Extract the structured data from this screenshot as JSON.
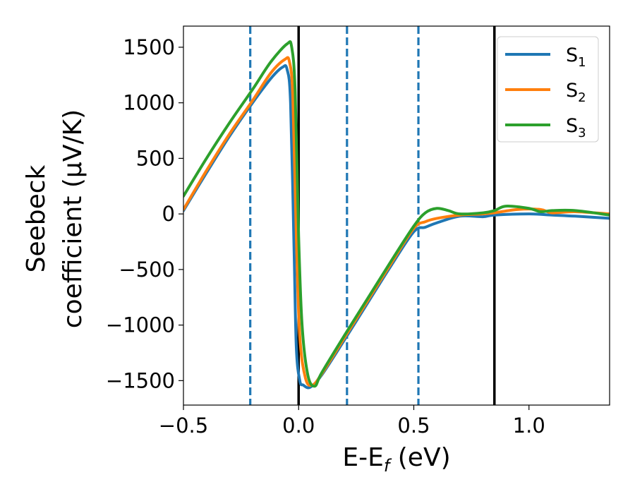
{
  "chart_data": {
    "type": "line",
    "xlabel": "E-E",
    "xlabel_sub": "f",
    "xlabel_unit": " (eV)",
    "ylabel_line1": "Seebeck",
    "ylabel_line2": "coefficient  (μV/K)",
    "xlim": [
      -0.5,
      1.35
    ],
    "ylim": [
      -1720,
      1690
    ],
    "x_ticks": [
      -0.5,
      0.0,
      0.5,
      1.0
    ],
    "x_tick_labels": [
      "−0.5",
      "0.0",
      "0.5",
      "1.0"
    ],
    "y_ticks": [
      1500,
      1000,
      500,
      0,
      -500,
      -1000,
      -1500
    ],
    "y_tick_labels": [
      "1500",
      "1000",
      "500",
      "0",
      "−500",
      "−1000",
      "−1500"
    ],
    "grid": false,
    "legend_position": "top-right",
    "vertical_lines": [
      {
        "x": -0.21,
        "style": "dashed",
        "color": "#1f77b4"
      },
      {
        "x": 0.0,
        "style": "solid",
        "color": "#000000"
      },
      {
        "x": 0.21,
        "style": "dashed",
        "color": "#1f77b4"
      },
      {
        "x": 0.52,
        "style": "dashed",
        "color": "#1f77b4"
      },
      {
        "x": 0.85,
        "style": "solid",
        "color": "#000000"
      }
    ],
    "series": [
      {
        "name": "S",
        "sub": "1",
        "color": "#1f77b4",
        "points": [
          [
            -0.5,
            30
          ],
          [
            -0.4,
            370
          ],
          [
            -0.3,
            700
          ],
          [
            -0.2,
            1000
          ],
          [
            -0.12,
            1220
          ],
          [
            -0.07,
            1320
          ],
          [
            -0.05,
            1300
          ],
          [
            -0.035,
            1000
          ],
          [
            -0.02,
            -300
          ],
          [
            -0.01,
            -1200
          ],
          [
            0.005,
            -1500
          ],
          [
            0.02,
            -1540
          ],
          [
            0.05,
            -1560
          ],
          [
            0.1,
            -1450
          ],
          [
            0.2,
            -1130
          ],
          [
            0.3,
            -800
          ],
          [
            0.4,
            -470
          ],
          [
            0.5,
            -160
          ],
          [
            0.55,
            -120
          ],
          [
            0.6,
            -80
          ],
          [
            0.7,
            -20
          ],
          [
            0.8,
            -25
          ],
          [
            0.85,
            -10
          ],
          [
            1.0,
            0
          ],
          [
            1.1,
            -10
          ],
          [
            1.2,
            -20
          ],
          [
            1.35,
            -40
          ]
        ]
      },
      {
        "name": "S",
        "sub": "2",
        "color": "#ff7f0e",
        "points": [
          [
            -0.5,
            40
          ],
          [
            -0.4,
            390
          ],
          [
            -0.3,
            720
          ],
          [
            -0.2,
            1020
          ],
          [
            -0.12,
            1270
          ],
          [
            -0.06,
            1390
          ],
          [
            -0.04,
            1370
          ],
          [
            -0.025,
            1050
          ],
          [
            -0.01,
            -200
          ],
          [
            0.005,
            -1100
          ],
          [
            0.03,
            -1480
          ],
          [
            0.06,
            -1540
          ],
          [
            0.1,
            -1440
          ],
          [
            0.2,
            -1110
          ],
          [
            0.3,
            -780
          ],
          [
            0.4,
            -450
          ],
          [
            0.5,
            -130
          ],
          [
            0.55,
            -70
          ],
          [
            0.6,
            -40
          ],
          [
            0.7,
            -10
          ],
          [
            0.8,
            0
          ],
          [
            0.85,
            10
          ],
          [
            0.95,
            40
          ],
          [
            1.05,
            40
          ],
          [
            1.1,
            10
          ],
          [
            1.2,
            20
          ],
          [
            1.35,
            0
          ]
        ]
      },
      {
        "name": "S",
        "sub": "3",
        "color": "#2ca02c",
        "points": [
          [
            -0.5,
            160
          ],
          [
            -0.4,
            500
          ],
          [
            -0.3,
            820
          ],
          [
            -0.2,
            1120
          ],
          [
            -0.12,
            1370
          ],
          [
            -0.05,
            1530
          ],
          [
            -0.03,
            1500
          ],
          [
            -0.015,
            1100
          ],
          [
            0.0,
            -200
          ],
          [
            0.015,
            -1000
          ],
          [
            0.04,
            -1450
          ],
          [
            0.07,
            -1550
          ],
          [
            0.1,
            -1430
          ],
          [
            0.2,
            -1090
          ],
          [
            0.3,
            -760
          ],
          [
            0.4,
            -430
          ],
          [
            0.5,
            -110
          ],
          [
            0.55,
            10
          ],
          [
            0.6,
            50
          ],
          [
            0.65,
            30
          ],
          [
            0.7,
            0
          ],
          [
            0.8,
            10
          ],
          [
            0.85,
            30
          ],
          [
            0.9,
            70
          ],
          [
            1.0,
            50
          ],
          [
            1.05,
            20
          ],
          [
            1.1,
            30
          ],
          [
            1.2,
            30
          ],
          [
            1.35,
            -10
          ]
        ]
      }
    ]
  }
}
